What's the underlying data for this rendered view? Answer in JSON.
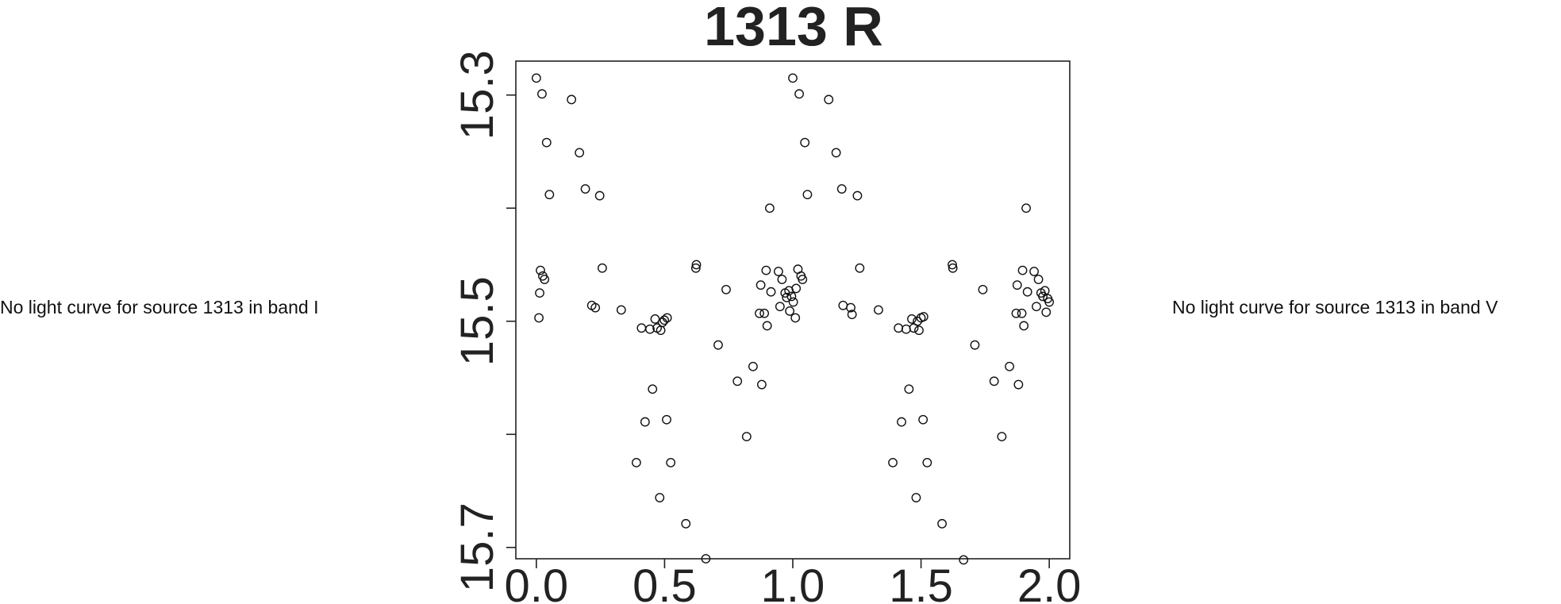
{
  "chart_data": {
    "type": "scatter",
    "title": "1313 R",
    "xlabel": "",
    "ylabel": "",
    "xlim": [
      -0.08,
      2.08
    ],
    "ylim": [
      15.71,
      15.27
    ],
    "y_inverted": true,
    "grid": false,
    "x_ticks": [
      {
        "value": 0.0,
        "label": "0.0"
      },
      {
        "value": 0.5,
        "label": "0.5"
      },
      {
        "value": 1.0,
        "label": "1.0"
      },
      {
        "value": 1.5,
        "label": "1.5"
      },
      {
        "value": 2.0,
        "label": "2.0"
      }
    ],
    "y_ticks": [
      {
        "value": 15.3,
        "label": "15.3"
      },
      {
        "value": 15.4,
        "label": ""
      },
      {
        "value": 15.5,
        "label": "15.5"
      },
      {
        "value": 15.6,
        "label": ""
      },
      {
        "value": 15.7,
        "label": "15.7"
      }
    ],
    "series": [
      {
        "marker": "open-circle",
        "points": [
          [
            0.0,
            15.285
          ],
          [
            0.01,
            15.497
          ],
          [
            0.013,
            15.475
          ],
          [
            0.016,
            15.455
          ],
          [
            0.022,
            15.299
          ],
          [
            0.025,
            15.46
          ],
          [
            0.032,
            15.463
          ],
          [
            0.04,
            15.342
          ],
          [
            0.051,
            15.388
          ],
          [
            0.137,
            15.304
          ],
          [
            0.168,
            15.351
          ],
          [
            0.191,
            15.383
          ],
          [
            0.216,
            15.486
          ],
          [
            0.23,
            15.488
          ],
          [
            0.247,
            15.389
          ],
          [
            0.257,
            15.453
          ],
          [
            0.331,
            15.49
          ],
          [
            0.39,
            15.625
          ],
          [
            0.41,
            15.506
          ],
          [
            0.424,
            15.589
          ],
          [
            0.443,
            15.507
          ],
          [
            0.453,
            15.56
          ],
          [
            0.463,
            15.498
          ],
          [
            0.471,
            15.506
          ],
          [
            0.481,
            15.656
          ],
          [
            0.485,
            15.508
          ],
          [
            0.492,
            15.501
          ],
          [
            0.499,
            15.499
          ],
          [
            0.51,
            15.497
          ],
          [
            0.508,
            15.587
          ],
          [
            0.524,
            15.625
          ],
          [
            0.583,
            15.679
          ],
          [
            0.622,
            15.453
          ],
          [
            0.624,
            15.45
          ],
          [
            0.661,
            15.71
          ],
          [
            0.709,
            15.521
          ],
          [
            0.74,
            15.472
          ],
          [
            0.784,
            15.553
          ],
          [
            0.82,
            15.602
          ],
          [
            0.845,
            15.54
          ],
          [
            0.87,
            15.493
          ],
          [
            0.875,
            15.468
          ],
          [
            0.879,
            15.556
          ],
          [
            0.889,
            15.493
          ],
          [
            0.896,
            15.455
          ],
          [
            0.9,
            15.504
          ],
          [
            0.91,
            15.4
          ],
          [
            0.915,
            15.474
          ],
          [
            0.944,
            15.456
          ],
          [
            0.95,
            15.487
          ],
          [
            0.958,
            15.463
          ],
          [
            0.97,
            15.475
          ],
          [
            0.976,
            15.479
          ],
          [
            0.985,
            15.473
          ],
          [
            0.988,
            15.491
          ],
          [
            0.995,
            15.478
          ],
          [
            1.0,
            15.285
          ],
          [
            1.002,
            15.483
          ],
          [
            1.01,
            15.497
          ],
          [
            1.013,
            15.471
          ],
          [
            1.02,
            15.454
          ],
          [
            1.025,
            15.299
          ],
          [
            1.032,
            15.46
          ],
          [
            1.038,
            15.463
          ],
          [
            1.047,
            15.342
          ],
          [
            1.057,
            15.388
          ],
          [
            1.14,
            15.304
          ],
          [
            1.169,
            15.351
          ],
          [
            1.191,
            15.383
          ],
          [
            1.196,
            15.486
          ],
          [
            1.226,
            15.488
          ],
          [
            1.231,
            15.494
          ],
          [
            1.252,
            15.389
          ],
          [
            1.261,
            15.453
          ],
          [
            1.334,
            15.49
          ],
          [
            1.39,
            15.625
          ],
          [
            1.412,
            15.506
          ],
          [
            1.424,
            15.589
          ],
          [
            1.442,
            15.507
          ],
          [
            1.453,
            15.56
          ],
          [
            1.464,
            15.498
          ],
          [
            1.472,
            15.506
          ],
          [
            1.481,
            15.656
          ],
          [
            1.486,
            15.5
          ],
          [
            1.492,
            15.508
          ],
          [
            1.5,
            15.497
          ],
          [
            1.51,
            15.496
          ],
          [
            1.508,
            15.587
          ],
          [
            1.524,
            15.625
          ],
          [
            1.582,
            15.679
          ],
          [
            1.622,
            15.45
          ],
          [
            1.624,
            15.453
          ],
          [
            1.666,
            15.711
          ],
          [
            1.71,
            15.521
          ],
          [
            1.741,
            15.472
          ],
          [
            1.785,
            15.553
          ],
          [
            1.815,
            15.602
          ],
          [
            1.845,
            15.54
          ],
          [
            1.871,
            15.493
          ],
          [
            1.875,
            15.468
          ],
          [
            1.88,
            15.556
          ],
          [
            1.893,
            15.493
          ],
          [
            1.896,
            15.455
          ],
          [
            1.901,
            15.504
          ],
          [
            1.91,
            15.4
          ],
          [
            1.915,
            15.474
          ],
          [
            1.941,
            15.456
          ],
          [
            1.95,
            15.487
          ],
          [
            1.958,
            15.463
          ],
          [
            1.968,
            15.475
          ],
          [
            1.975,
            15.478
          ],
          [
            1.983,
            15.473
          ],
          [
            1.988,
            15.492
          ],
          [
            1.994,
            15.48
          ],
          [
            2.0,
            15.483
          ]
        ]
      }
    ]
  },
  "notes": {
    "left": "No light curve for source 1313 in band I",
    "right": "No light curve for source 1313 in band V"
  }
}
